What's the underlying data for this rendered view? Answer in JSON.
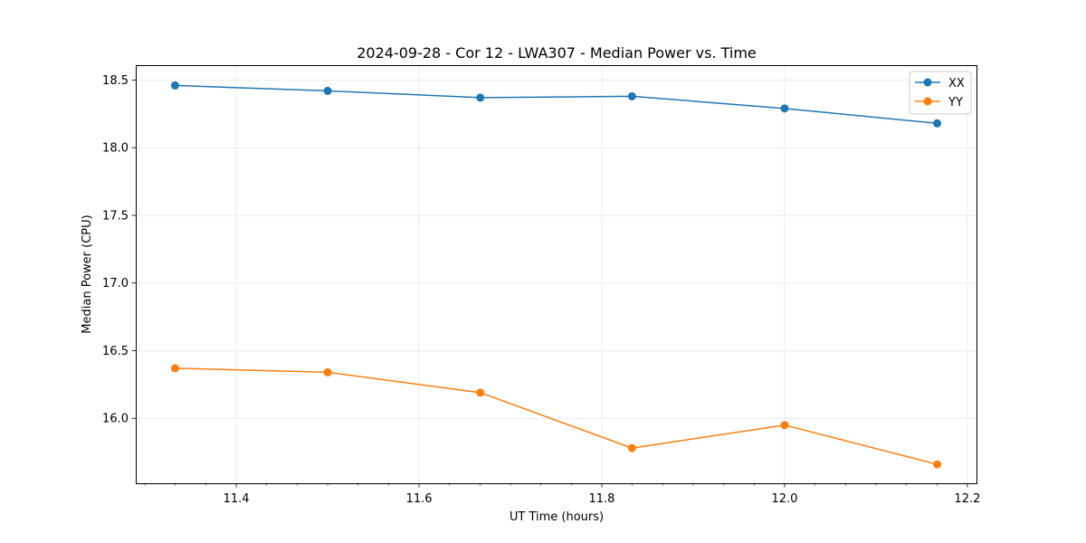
{
  "chart_data": {
    "type": "line",
    "title": "2024-09-28 - Cor 12 - LWA307 - Median Power vs. Time",
    "xlabel": "UT Time (hours)",
    "ylabel": "Median Power (CPU)",
    "xlim": [
      11.29,
      12.21
    ],
    "ylim": [
      15.52,
      18.61
    ],
    "xticks": [
      11.4,
      11.6,
      11.8,
      12.0,
      12.2
    ],
    "xtick_labels": [
      "11.4",
      "11.6",
      "11.8",
      "12.0",
      "12.2"
    ],
    "xminor_ticks": [
      11.3,
      11.333,
      11.367,
      11.433,
      11.467,
      11.5,
      11.533,
      11.567,
      11.633,
      11.667,
      11.7,
      11.733,
      11.767,
      11.833,
      11.867,
      11.9,
      11.933,
      11.967,
      12.033,
      12.067,
      12.1,
      12.133,
      12.167
    ],
    "yticks": [
      16.0,
      16.5,
      17.0,
      17.5,
      18.0,
      18.5
    ],
    "ytick_labels": [
      "16.0",
      "16.5",
      "17.0",
      "17.5",
      "18.0",
      "18.5"
    ],
    "grid": true,
    "legend_position": "top-right",
    "x": [
      11.333,
      11.5,
      11.667,
      11.833,
      12.0,
      12.167
    ],
    "series": [
      {
        "name": "XX",
        "color": "#1f77b4",
        "values": [
          18.46,
          18.42,
          18.37,
          18.38,
          18.29,
          18.18
        ]
      },
      {
        "name": "YY",
        "color": "#ff7f0e",
        "values": [
          16.37,
          16.34,
          16.19,
          15.78,
          15.95,
          15.66
        ]
      }
    ]
  }
}
